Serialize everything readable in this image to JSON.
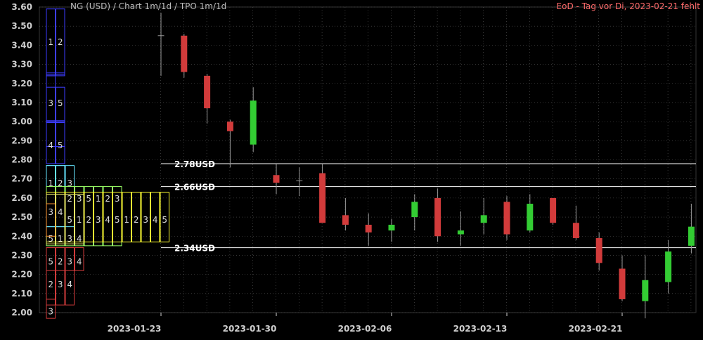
{
  "header": {
    "title": "NG (USD) /  Chart 1m/1d / TPO 1m/1d",
    "status": "EoD - Tag vor Di, 2023-02-21 fehlt"
  },
  "colors": {
    "background": "#000000",
    "grid": "#5a5a5a",
    "up": "#33cc33",
    "down": "#d23b3b",
    "wick": "#9a9a9a",
    "axis_text": "#cfcfcf",
    "level_line": "#ffffff"
  },
  "chart_data": {
    "type": "candlestick",
    "ylim": [
      2.0,
      3.6
    ],
    "y_ticks": [
      "2.00",
      "2.10",
      "2.20",
      "2.30",
      "2.40",
      "2.50",
      "2.60",
      "2.70",
      "2.80",
      "2.90",
      "3.00",
      "3.10",
      "3.20",
      "3.30",
      "3.40",
      "3.50",
      "3.60"
    ],
    "x_ticks": [
      {
        "label": "2023-01-23",
        "index": 0
      },
      {
        "label": "2023-01-30",
        "index": 5
      },
      {
        "label": "2023-02-06",
        "index": 10
      },
      {
        "label": "2023-02-13",
        "index": 15
      },
      {
        "label": "2023-02-21",
        "index": 20
      }
    ],
    "candles": [
      {
        "date": "2023-01-23",
        "open": 3.45,
        "high": 3.57,
        "low": 3.24,
        "close": 3.45
      },
      {
        "date": "2023-01-24",
        "open": 3.45,
        "high": 3.46,
        "low": 3.23,
        "close": 3.26
      },
      {
        "date": "2023-01-25",
        "open": 3.24,
        "high": 3.25,
        "low": 2.99,
        "close": 3.07
      },
      {
        "date": "2023-01-26",
        "open": 3.0,
        "high": 3.01,
        "low": 2.76,
        "close": 2.95
      },
      {
        "date": "2023-01-27",
        "open": 2.88,
        "high": 3.18,
        "low": 2.84,
        "close": 3.11
      },
      {
        "date": "2023-01-30",
        "open": 2.72,
        "high": 2.78,
        "low": 2.62,
        "close": 2.68
      },
      {
        "date": "2023-01-31",
        "open": 2.69,
        "high": 2.76,
        "low": 2.61,
        "close": 2.69
      },
      {
        "date": "2023-02-01",
        "open": 2.73,
        "high": 2.78,
        "low": 2.47,
        "close": 2.47
      },
      {
        "date": "2023-02-02",
        "open": 2.51,
        "high": 2.6,
        "low": 2.43,
        "close": 2.46
      },
      {
        "date": "2023-02-03",
        "open": 2.46,
        "high": 2.52,
        "low": 2.35,
        "close": 2.42
      },
      {
        "date": "2023-02-06",
        "open": 2.43,
        "high": 2.49,
        "low": 2.37,
        "close": 2.46
      },
      {
        "date": "2023-02-07",
        "open": 2.5,
        "high": 2.62,
        "low": 2.43,
        "close": 2.58
      },
      {
        "date": "2023-02-08",
        "open": 2.6,
        "high": 2.65,
        "low": 2.37,
        "close": 2.4
      },
      {
        "date": "2023-02-09",
        "open": 2.41,
        "high": 2.53,
        "low": 2.35,
        "close": 2.43
      },
      {
        "date": "2023-02-10",
        "open": 2.47,
        "high": 2.6,
        "low": 2.41,
        "close": 2.51
      },
      {
        "date": "2023-02-13",
        "open": 2.58,
        "high": 2.61,
        "low": 2.38,
        "close": 2.41
      },
      {
        "date": "2023-02-14",
        "open": 2.43,
        "high": 2.62,
        "low": 2.42,
        "close": 2.57
      },
      {
        "date": "2023-02-15",
        "open": 2.6,
        "high": 2.6,
        "low": 2.46,
        "close": 2.47
      },
      {
        "date": "2023-02-16",
        "open": 2.47,
        "high": 2.56,
        "low": 2.38,
        "close": 2.39
      },
      {
        "date": "2023-02-17",
        "open": 2.39,
        "high": 2.42,
        "low": 2.22,
        "close": 2.26
      },
      {
        "date": "2023-02-21",
        "open": 2.23,
        "high": 2.3,
        "low": 2.06,
        "close": 2.07
      },
      {
        "date": "2023-02-22",
        "open": 2.06,
        "high": 2.3,
        "low": 1.97,
        "close": 2.17
      },
      {
        "date": "2023-02-23",
        "open": 2.16,
        "high": 2.38,
        "low": 2.1,
        "close": 2.32
      },
      {
        "date": "2023-02-24",
        "open": 2.35,
        "high": 2.57,
        "low": 2.31,
        "close": 2.45
      }
    ],
    "levels": [
      {
        "value": 2.78,
        "label": "2.78USD"
      },
      {
        "value": 2.66,
        "label": "2.66USD"
      },
      {
        "value": 2.34,
        "label": "2.34USD"
      }
    ],
    "tpo_profile": [
      {
        "color": "#3d3dff",
        "lo": 3.24,
        "hi": 3.59,
        "text_price": 3.42,
        "letters": [
          "1",
          "2"
        ]
      },
      {
        "color": "#3d3dff",
        "lo": 3.245,
        "hi": 3.255,
        "text_price": null,
        "letters": [
          "",
          ""
        ]
      },
      {
        "color": "#3d3dff",
        "lo": 3.0,
        "hi": 3.24,
        "text_price": 3.1,
        "letters": [
          "3"
        ]
      },
      {
        "color": "#3d3dff",
        "lo": 2.87,
        "hi": 3.18,
        "text_price": 3.1,
        "letters": [
          "",
          "5"
        ]
      },
      {
        "color": "#3d3dff",
        "lo": 2.78,
        "hi": 3.0,
        "text_price": 2.88,
        "letters": [
          "4",
          "5"
        ]
      },
      {
        "color": "#3d3dff",
        "lo": 2.995,
        "hi": 3.005,
        "text_price": null,
        "letters": [
          "",
          ""
        ]
      },
      {
        "color": "#66e6ff",
        "lo": 2.45,
        "hi": 2.77,
        "text_price": 2.68,
        "letters": [
          "1",
          "2",
          "3"
        ]
      },
      {
        "color": "#66e6ff",
        "lo": 2.45,
        "hi": 2.77,
        "text_price": 2.53,
        "letters": [
          "3",
          "4"
        ]
      },
      {
        "color": "#99ff66",
        "lo": 2.35,
        "hi": 2.66,
        "text_price": 2.6,
        "letters": [
          "",
          "",
          "2",
          "3",
          "5",
          "1",
          "2",
          "3"
        ]
      },
      {
        "color": "#ffff33",
        "lo": 2.37,
        "hi": 2.63,
        "text_price": 2.49,
        "letters": [
          "",
          "",
          "5",
          "1",
          "2",
          "3",
          "4",
          "5",
          "1",
          "2",
          "3",
          "4",
          "5"
        ]
      },
      {
        "color": "#e6e666",
        "lo": 2.36,
        "hi": 2.62,
        "text_price": 2.39,
        "letters": [
          "5",
          "1",
          "3",
          "4"
        ]
      },
      {
        "color": "#ff9933",
        "lo": 2.4,
        "hi": 2.57,
        "text_price": null,
        "letters": []
      },
      {
        "color": "#d23b3b",
        "lo": 2.22,
        "hi": 2.34,
        "text_price": 2.27,
        "letters": [
          "5",
          "2",
          "3",
          "4"
        ]
      },
      {
        "color": "#d23b3b",
        "lo": 2.04,
        "hi": 2.34,
        "text_price": 2.15,
        "letters": [
          "2",
          "3",
          "4"
        ]
      },
      {
        "color": "#d23b3b",
        "lo": 1.97,
        "hi": 2.07,
        "text_price": 2.01,
        "letters": [
          "3"
        ]
      }
    ]
  }
}
